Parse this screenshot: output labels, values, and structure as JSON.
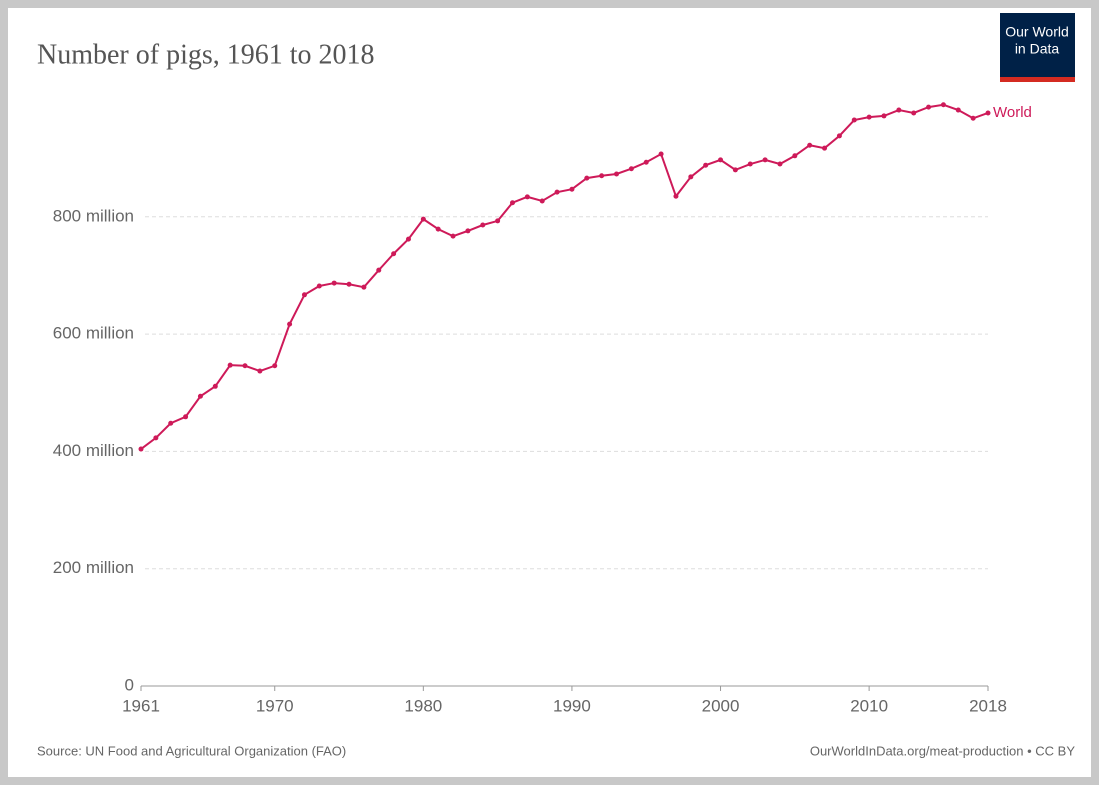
{
  "chart_data": {
    "type": "line",
    "title": "Number of pigs, 1961 to 2018",
    "logo": [
      "Our World",
      "in Data"
    ],
    "source": "Source: UN Food and Agricultural Organization (FAO)",
    "credit": "OurWorldInData.org/meat-production • CC BY",
    "x": [
      1961,
      1962,
      1963,
      1964,
      1965,
      1966,
      1967,
      1968,
      1969,
      1970,
      1971,
      1972,
      1973,
      1974,
      1975,
      1976,
      1977,
      1978,
      1979,
      1980,
      1981,
      1982,
      1983,
      1984,
      1985,
      1986,
      1987,
      1988,
      1989,
      1990,
      1991,
      1992,
      1993,
      1994,
      1995,
      1996,
      1997,
      1998,
      1999,
      2000,
      2001,
      2002,
      2003,
      2004,
      2005,
      2006,
      2007,
      2008,
      2009,
      2010,
      2011,
      2012,
      2013,
      2014,
      2015,
      2016,
      2017,
      2018
    ],
    "series": [
      {
        "name": "World",
        "color": "#ce1a59",
        "values": [
          404,
          423,
          448,
          459,
          494,
          511,
          547,
          546,
          537,
          546,
          617,
          667,
          682,
          687,
          685,
          680,
          709,
          737,
          762,
          796,
          779,
          767,
          776,
          786,
          793,
          824,
          834,
          827,
          842,
          847,
          866,
          870,
          873,
          882,
          893,
          907,
          835,
          868,
          888,
          897,
          880,
          890,
          897,
          890,
          904,
          922,
          917,
          938,
          965,
          970,
          972,
          982,
          977,
          987,
          991,
          982,
          968,
          977
        ]
      }
    ],
    "xlim": [
      1961,
      2018
    ],
    "xticks": [
      1961,
      1970,
      1980,
      1990,
      2000,
      2010,
      2018
    ],
    "ylim": [
      0,
      1000
    ],
    "yticks": [
      0,
      {
        "value": 200,
        "label": "200 million"
      },
      {
        "value": 400,
        "label": "400 million"
      },
      {
        "value": 600,
        "label": "600 million"
      },
      {
        "value": 800,
        "label": "800 million"
      }
    ],
    "grid": true
  }
}
